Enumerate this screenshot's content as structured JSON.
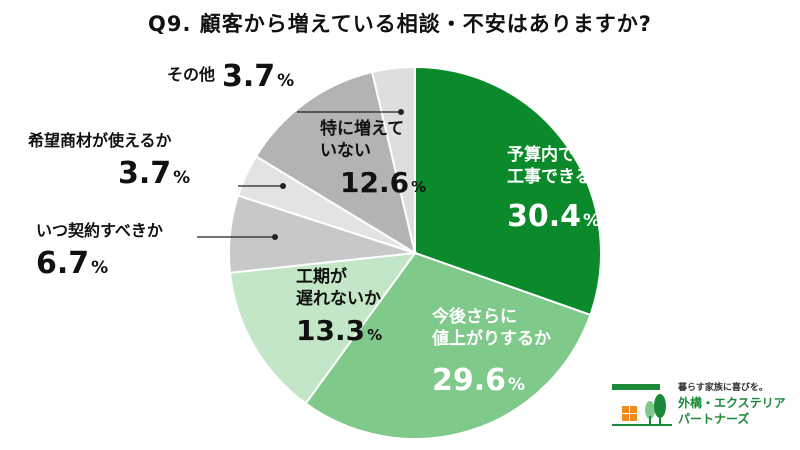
{
  "chart_data": {
    "type": "pie",
    "title": "Q9. 顧客から増えている相談・不安はありますか?",
    "unit": "%",
    "slices": [
      {
        "label": "予算内で工事できるか",
        "label_lines": [
          "予算内で",
          "工事できるか"
        ],
        "value": 30.4,
        "value_text": "30.4",
        "color": "#0a8a2b",
        "text_color": "#ffffff"
      },
      {
        "label": "今後さらに値上がりするか",
        "label_lines": [
          "今後さらに",
          "値上がりするか"
        ],
        "value": 29.6,
        "value_text": "29.6",
        "color": "#7fc98b",
        "text_color": "#ffffff"
      },
      {
        "label": "工期が遅れないか",
        "label_lines": [
          "工期が",
          "遅れないか"
        ],
        "value": 13.3,
        "value_text": "13.3",
        "color": "#c2e6c6",
        "text_color": "#111111"
      },
      {
        "label": "いつ契約すべきか",
        "label_lines": [
          "いつ契約すべきか"
        ],
        "value": 6.7,
        "value_text": "6.7",
        "color": "#c8c8c8",
        "text_color": "#111111"
      },
      {
        "label": "希望商材が使えるか",
        "label_lines": [
          "希望商材が使えるか"
        ],
        "value": 3.7,
        "value_text": "3.7",
        "color": "#e3e3e3",
        "text_color": "#111111"
      },
      {
        "label": "特に増えていない",
        "label_lines": [
          "特に増えて",
          "いない"
        ],
        "value": 12.6,
        "value_text": "12.6",
        "color": "#b3b3b3",
        "text_color": "#111111"
      },
      {
        "label": "その他",
        "label_lines": [
          "その他"
        ],
        "value": 3.7,
        "value_text": "3.7",
        "color": "#dedede",
        "text_color": "#111111"
      }
    ]
  },
  "logo": {
    "tagline": "暮らす家族に喜びを。",
    "name_line1": "外構・エクステリア",
    "name_line2": "パートナーズ",
    "brand_color": "#1b8a38",
    "accent_color": "#f08a1c"
  }
}
